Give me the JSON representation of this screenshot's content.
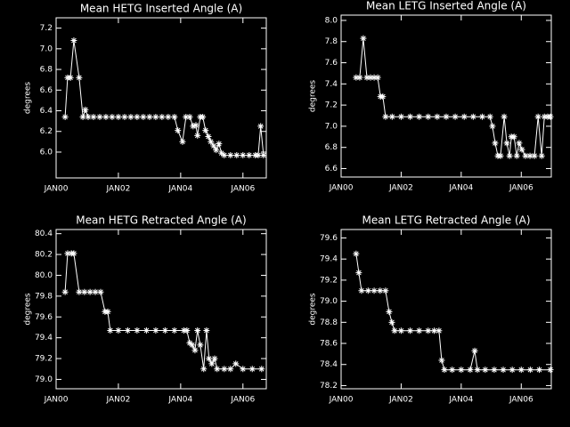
{
  "chart_data": [
    {
      "type": "line",
      "title": "Mean HETG Inserted Angle (A)",
      "ylabel": "degrees",
      "color": "#ffffff",
      "x": [
        2000.29,
        2000.37,
        2000.46,
        2000.57,
        2000.74,
        2000.86,
        2000.94,
        2001.03,
        2001.2,
        2001.4,
        2001.6,
        2001.8,
        2002.0,
        2002.2,
        2002.4,
        2002.6,
        2002.8,
        2003.0,
        2003.2,
        2003.4,
        2003.6,
        2003.8,
        2003.91,
        2004.06,
        2004.17,
        2004.29,
        2004.4,
        2004.49,
        2004.54,
        2004.63,
        2004.71,
        2004.8,
        2004.89,
        2004.97,
        2005.06,
        2005.14,
        2005.23,
        2005.31,
        2005.4,
        2005.6,
        2005.8,
        2006.0,
        2006.2,
        2006.4,
        2006.49,
        2006.57,
        2006.66
      ],
      "values": [
        6.34,
        6.72,
        6.72,
        7.08,
        6.72,
        6.34,
        6.41,
        6.34,
        6.34,
        6.34,
        6.34,
        6.34,
        6.34,
        6.34,
        6.34,
        6.34,
        6.34,
        6.34,
        6.34,
        6.34,
        6.34,
        6.34,
        6.21,
        6.1,
        6.34,
        6.34,
        6.25,
        6.26,
        6.16,
        6.34,
        6.34,
        6.21,
        6.15,
        6.1,
        6.06,
        6.02,
        6.08,
        5.99,
        5.97,
        5.97,
        5.97,
        5.97,
        5.97,
        5.97,
        5.97,
        6.25,
        5.97
      ],
      "xlim": [
        2000,
        2006.75
      ],
      "xticks": [
        {
          "value": 2000,
          "label": "JAN00"
        },
        {
          "value": 2002,
          "label": "JAN02"
        },
        {
          "value": 2004,
          "label": "JAN04"
        },
        {
          "value": 2006,
          "label": "JAN06"
        }
      ],
      "ylim": [
        5.75,
        7.3
      ],
      "yticks": [
        {
          "value": 6.0,
          "label": "6.0"
        },
        6.2,
        6.4,
        6.6,
        6.8,
        {
          "value": 7.0,
          "label": "7.0"
        },
        7.2
      ]
    },
    {
      "type": "line",
      "title": "Mean LETG Inserted Angle (A)",
      "ylabel": "degrees",
      "color": "#ffffff",
      "x": [
        2000.5,
        2000.62,
        2000.74,
        2000.86,
        2000.98,
        2001.1,
        2001.22,
        2001.31,
        2001.39,
        2001.48,
        2001.7,
        2002.0,
        2002.3,
        2002.6,
        2002.9,
        2003.2,
        2003.5,
        2003.8,
        2004.1,
        2004.4,
        2004.7,
        2004.96,
        2005.04,
        2005.13,
        2005.22,
        2005.31,
        2005.43,
        2005.52,
        2005.61,
        2005.67,
        2005.76,
        2005.85,
        2005.93,
        2006.02,
        2006.14,
        2006.29,
        2006.44,
        2006.56,
        2006.68,
        2006.77,
        2006.88,
        2006.97
      ],
      "values": [
        7.46,
        7.46,
        7.83,
        7.46,
        7.46,
        7.46,
        7.46,
        7.28,
        7.28,
        7.09,
        7.09,
        7.09,
        7.09,
        7.09,
        7.09,
        7.09,
        7.09,
        7.09,
        7.09,
        7.09,
        7.09,
        7.09,
        7.0,
        6.84,
        6.72,
        6.72,
        7.09,
        6.84,
        6.72,
        6.9,
        6.9,
        6.72,
        6.84,
        6.78,
        6.72,
        6.72,
        6.72,
        7.09,
        6.72,
        7.09,
        7.09,
        7.09
      ],
      "xlim": [
        2000,
        2007.0
      ],
      "xticks": [
        {
          "value": 2000,
          "label": "JAN00"
        },
        {
          "value": 2002,
          "label": "JAN02"
        },
        {
          "value": 2004,
          "label": "JAN04"
        },
        {
          "value": 2006,
          "label": "JAN06"
        }
      ],
      "ylim": [
        6.52,
        8.05
      ],
      "yticks": [
        6.6,
        6.8,
        {
          "value": 7.0,
          "label": "7.0"
        },
        7.2,
        7.4,
        7.6,
        7.8,
        {
          "value": 8.0,
          "label": "8.0"
        }
      ]
    },
    {
      "type": "line",
      "title": "Mean HETG Retracted Angle (A)",
      "ylabel": "degrees",
      "color": "#ffffff",
      "x": [
        2000.29,
        2000.37,
        2000.49,
        2000.57,
        2000.74,
        2000.91,
        2001.09,
        2001.26,
        2001.43,
        2001.57,
        2001.66,
        2001.74,
        2002.0,
        2002.3,
        2002.6,
        2002.9,
        2003.2,
        2003.5,
        2003.8,
        2004.1,
        2004.2,
        2004.29,
        2004.37,
        2004.46,
        2004.54,
        2004.63,
        2004.74,
        2004.83,
        2004.91,
        2005.0,
        2005.09,
        2005.17,
        2005.4,
        2005.6,
        2005.77,
        2006.0,
        2006.3,
        2006.6
      ],
      "values": [
        79.84,
        80.21,
        80.21,
        80.21,
        79.84,
        79.84,
        79.84,
        79.84,
        79.84,
        79.65,
        79.65,
        79.47,
        79.47,
        79.47,
        79.47,
        79.47,
        79.47,
        79.47,
        79.47,
        79.47,
        79.47,
        79.35,
        79.33,
        79.28,
        79.47,
        79.33,
        79.1,
        79.47,
        79.2,
        79.15,
        79.2,
        79.1,
        79.1,
        79.1,
        79.15,
        79.1,
        79.1,
        79.1
      ],
      "xlim": [
        2000,
        2006.75
      ],
      "xticks": [
        {
          "value": 2000,
          "label": "JAN00"
        },
        {
          "value": 2002,
          "label": "JAN02"
        },
        {
          "value": 2004,
          "label": "JAN04"
        },
        {
          "value": 2006,
          "label": "JAN06"
        }
      ],
      "ylim": [
        78.91,
        80.44
      ],
      "yticks": [
        {
          "value": 79.0,
          "label": "79.0"
        },
        79.2,
        79.4,
        79.6,
        79.8,
        {
          "value": 80.0,
          "label": "80.0"
        },
        80.2,
        80.4
      ]
    },
    {
      "type": "line",
      "title": "Mean LETG Retracted Angle (A)",
      "ylabel": "degrees",
      "color": "#ffffff",
      "x": [
        2000.5,
        2000.59,
        2000.68,
        2000.9,
        2001.1,
        2001.3,
        2001.48,
        2001.6,
        2001.69,
        2001.78,
        2002.0,
        2002.3,
        2002.6,
        2002.9,
        2003.1,
        2003.26,
        2003.35,
        2003.44,
        2003.7,
        2004.0,
        2004.3,
        2004.45,
        2004.54,
        2004.8,
        2005.1,
        2005.4,
        2005.7,
        2006.0,
        2006.3,
        2006.6,
        2006.97
      ],
      "values": [
        79.45,
        79.27,
        79.1,
        79.1,
        79.1,
        79.1,
        79.1,
        78.9,
        78.8,
        78.72,
        78.72,
        78.72,
        78.72,
        78.72,
        78.72,
        78.72,
        78.44,
        78.35,
        78.35,
        78.35,
        78.35,
        78.53,
        78.35,
        78.35,
        78.35,
        78.35,
        78.35,
        78.35,
        78.35,
        78.35,
        78.35
      ],
      "xlim": [
        2000,
        2007.0
      ],
      "xticks": [
        {
          "value": 2000,
          "label": "JAN00"
        },
        {
          "value": 2002,
          "label": "JAN02"
        },
        {
          "value": 2004,
          "label": "JAN04"
        },
        {
          "value": 2006,
          "label": "JAN06"
        }
      ],
      "ylim": [
        78.17,
        79.68
      ],
      "yticks": [
        78.2,
        78.4,
        78.6,
        78.8,
        {
          "value": 79.0,
          "label": "79.0"
        },
        79.2,
        79.4,
        79.6
      ]
    }
  ]
}
